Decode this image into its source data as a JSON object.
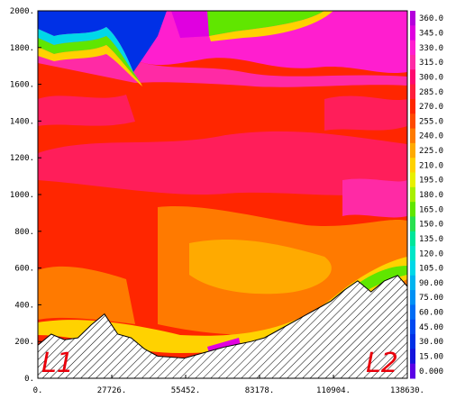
{
  "chart_data": {
    "type": "heatmap",
    "title": "",
    "xlabel": "",
    "ylabel": "",
    "xlim": [
      0,
      138630
    ],
    "ylim": [
      0,
      2000
    ],
    "x_ticks": [
      {
        "value": 0,
        "label": "0."
      },
      {
        "value": 27726,
        "label": "27726."
      },
      {
        "value": 55452,
        "label": "55452."
      },
      {
        "value": 83178,
        "label": "83178."
      },
      {
        "value": 110904,
        "label": "110904."
      },
      {
        "value": 138630,
        "label": "138630."
      }
    ],
    "y_ticks": [
      {
        "value": 0,
        "label": "0."
      },
      {
        "value": 200,
        "label": "200."
      },
      {
        "value": 400,
        "label": "400."
      },
      {
        "value": 600,
        "label": "600."
      },
      {
        "value": 800,
        "label": "800."
      },
      {
        "value": 1000,
        "label": "1000."
      },
      {
        "value": 1200,
        "label": "1200."
      },
      {
        "value": 1400,
        "label": "1400."
      },
      {
        "value": 1600,
        "label": "1600."
      },
      {
        "value": 1800,
        "label": "1800."
      },
      {
        "value": 2000,
        "label": "2000."
      }
    ],
    "colorbar": {
      "levels": [
        "360.0",
        "345.0",
        "330.0",
        "315.0",
        "300.0",
        "285.0",
        "270.0",
        "255.0",
        "240.0",
        "225.0",
        "210.0",
        "195.0",
        "180.0",
        "165.0",
        "150.0",
        "135.0",
        "120.0",
        "105.0",
        "90.00",
        "75.00",
        "60.00",
        "45.00",
        "30.00",
        "15.00",
        "0.000"
      ],
      "colors": [
        "#b400dc",
        "#e000e0",
        "#ff1ecf",
        "#ff2aa5",
        "#ff0a6e",
        "#ff1e3c",
        "#ff2600",
        "#ff4a00",
        "#ff7a00",
        "#ffaa00",
        "#ffd200",
        "#e8f000",
        "#a8ef00",
        "#60e600",
        "#28e050",
        "#00e69a",
        "#00e6c8",
        "#00d8e8",
        "#00b4f0",
        "#0090f5",
        "#006cf5",
        "#0048f0",
        "#0030e6",
        "#1414dc",
        "#5a00e6"
      ]
    },
    "terrain_profile": {
      "x": [
        0,
        5000,
        10000,
        15000,
        20000,
        25000,
        30000,
        35000,
        40000,
        45000,
        50000,
        55000,
        60000,
        65000,
        70000,
        75000,
        80000,
        85000,
        90000,
        95000,
        100000,
        105000,
        110000,
        115000,
        120000,
        125000,
        130000,
        135000,
        138630
      ],
      "y": [
        180,
        240,
        210,
        220,
        290,
        350,
        240,
        220,
        160,
        120,
        115,
        110,
        130,
        150,
        170,
        185,
        200,
        220,
        260,
        300,
        340,
        380,
        420,
        480,
        530,
        470,
        530,
        560,
        500
      ]
    },
    "annotations": [
      {
        "text": "L1",
        "position": "bottom-left"
      },
      {
        "text": "L2",
        "position": "bottom-right"
      }
    ]
  }
}
